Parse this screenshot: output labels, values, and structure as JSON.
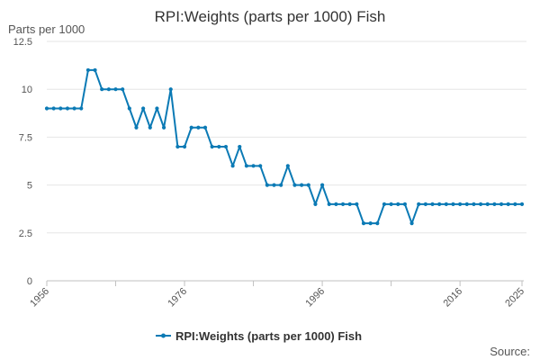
{
  "chart_data": {
    "type": "line",
    "title": "RPI:Weights (parts per 1000) Fish",
    "ylabel": "Parts per 1000",
    "xlabel": "",
    "ylim": [
      0,
      12.5
    ],
    "xlim": [
      1956,
      2025
    ],
    "y_ticks": [
      0,
      2.5,
      5,
      7.5,
      10,
      12.5
    ],
    "y_tick_labels": [
      "0",
      "2.5",
      "5",
      "7.5",
      "10",
      "12.5"
    ],
    "x_ticks": [
      1956,
      1976,
      1996,
      2016,
      2025
    ],
    "x_tick_labels": [
      "1956",
      "1976",
      "1996",
      "2016",
      "2025"
    ],
    "series": [
      {
        "name": "RPI:Weights (parts per 1000) Fish",
        "color": "#0b7ab5",
        "x": [
          1956,
          1957,
          1958,
          1959,
          1960,
          1961,
          1962,
          1963,
          1964,
          1965,
          1966,
          1967,
          1968,
          1969,
          1970,
          1971,
          1972,
          1973,
          1974,
          1975,
          1976,
          1977,
          1978,
          1979,
          1980,
          1981,
          1982,
          1983,
          1984,
          1985,
          1986,
          1987,
          1988,
          1989,
          1990,
          1991,
          1992,
          1993,
          1994,
          1995,
          1996,
          1997,
          1998,
          1999,
          2000,
          2001,
          2002,
          2003,
          2004,
          2005,
          2006,
          2007,
          2008,
          2009,
          2010,
          2011,
          2012,
          2013,
          2014,
          2015,
          2016,
          2017,
          2018,
          2019,
          2020,
          2021,
          2022,
          2023,
          2024,
          2025
        ],
        "values": [
          9,
          9,
          9,
          9,
          9,
          9,
          11,
          11,
          10,
          10,
          10,
          10,
          9,
          8,
          9,
          8,
          9,
          8,
          10,
          7,
          7,
          8,
          8,
          8,
          7,
          7,
          7,
          6,
          7,
          6,
          6,
          6,
          5,
          5,
          5,
          6,
          5,
          5,
          5,
          4,
          5,
          4,
          4,
          4,
          4,
          4,
          3,
          3,
          3,
          4,
          4,
          4,
          4,
          3,
          4,
          4,
          4,
          4,
          4,
          4,
          4,
          4,
          4,
          4,
          4,
          4,
          4,
          4,
          4,
          4
        ]
      }
    ],
    "legend_position": "bottom-center",
    "source_label": "Source:"
  }
}
